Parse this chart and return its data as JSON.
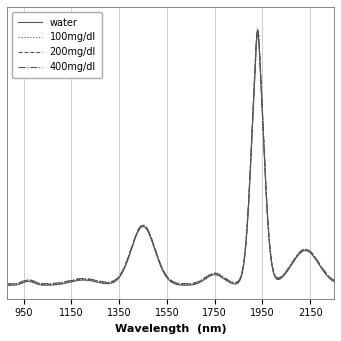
{
  "title": "",
  "xlabel": "Wavelength  (nm)",
  "ylabel": "",
  "xlim": [
    880,
    2250
  ],
  "ylim": [
    0,
    1
  ],
  "xticks": [
    950,
    1150,
    1350,
    1550,
    1750,
    1950,
    2150
  ],
  "legend_labels": [
    "water",
    "100mg/dl",
    "200mg/dl",
    "400mg/dl"
  ],
  "legend_linestyles": [
    "-",
    ":",
    "--",
    "-."
  ],
  "line_color": "#555555",
  "bg_color": "#ffffff",
  "grid_color": "#bbbbbb",
  "figsize": [
    3.41,
    3.41
  ],
  "dpi": 100
}
